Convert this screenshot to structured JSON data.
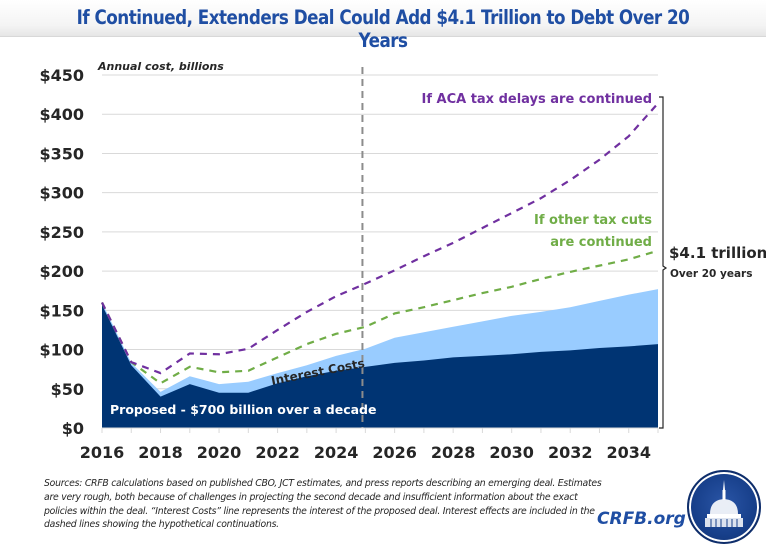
{
  "header": {
    "title": "If Continued, Extenders Deal Could Add $4.1 Trillion to Debt Over 20 Years"
  },
  "chart_data": {
    "type": "area",
    "title": "If Continued, Extenders Deal Could Add $4.1 Trillion to Debt Over 20 Years",
    "ylabel": "Annual cost, billions",
    "xlabel": "",
    "ylim": [
      0,
      450
    ],
    "yticks": [
      0,
      50,
      100,
      150,
      200,
      250,
      300,
      350,
      400,
      450
    ],
    "ytick_labels": [
      "$0",
      "$50",
      "$100",
      "$150",
      "$200",
      "$250",
      "$300",
      "$350",
      "$400",
      "$450"
    ],
    "xlim": [
      2016,
      2035
    ],
    "xtick_labels": [
      "2016",
      "2018",
      "2020",
      "2022",
      "2024",
      "2026",
      "2028",
      "2030",
      "2032",
      "2034"
    ],
    "x": [
      2016,
      2017,
      2018,
      2019,
      2020,
      2021,
      2022,
      2023,
      2024,
      2025,
      2026,
      2027,
      2028,
      2029,
      2030,
      2031,
      2032,
      2033,
      2034,
      2035
    ],
    "grid": true,
    "vertical_marker": {
      "x": 2024.9,
      "style": "dashed"
    },
    "series": [
      {
        "name": "Proposed - $700 billion over a decade",
        "kind": "area",
        "color": "#003473",
        "values": [
          157,
          80,
          40,
          56,
          45,
          45,
          57,
          66,
          73,
          78,
          83,
          86,
          90,
          92,
          94,
          97,
          99,
          102,
          104,
          107
        ]
      },
      {
        "name": "Interest Costs",
        "kind": "stacked-area-top",
        "color": "#99ccff",
        "values": [
          160,
          83,
          46,
          66,
          56,
          59,
          70,
          80,
          92,
          101,
          115,
          122,
          129,
          136,
          143,
          148,
          154,
          162,
          170,
          177
        ]
      },
      {
        "name": "If other tax cuts are continued",
        "kind": "dashed-line",
        "color": "#70ad47",
        "values": [
          160,
          84,
          57,
          78,
          71,
          73,
          90,
          107,
          120,
          129,
          146,
          154,
          163,
          172,
          180,
          190,
          199,
          207,
          215,
          226
        ]
      },
      {
        "name": "If ACA tax delays are continued",
        "kind": "dashed-line",
        "color": "#7030a0",
        "values": [
          160,
          84,
          70,
          95,
          94,
          101,
          125,
          148,
          168,
          184,
          201,
          219,
          236,
          255,
          274,
          293,
          316,
          342,
          372,
          414
        ]
      }
    ],
    "annotations": {
      "aca": "If ACA tax delays are continued",
      "other_line1": "If other tax cuts",
      "other_line2": "are continued",
      "total": "$4.1 trillion",
      "total_sub": "Over 20 years",
      "proposed": "Proposed - $700 billion over a decade",
      "interest": "Interest Costs"
    }
  },
  "footer": {
    "sources": "Sources: CRFB calculations based on published CBO, JCT estimates, and press reports describing an emerging deal. Estimates are very rough, both because of challenges in projecting the second decade and insufficient information about the exact policies within the deal. “Interest Costs” line represents the interest of the proposed deal. Interest effects are included in the dashed lines showing the hypothetical continuations.",
    "brand": "CRFB.org",
    "logo_icon": "capitol-dome-icon"
  }
}
